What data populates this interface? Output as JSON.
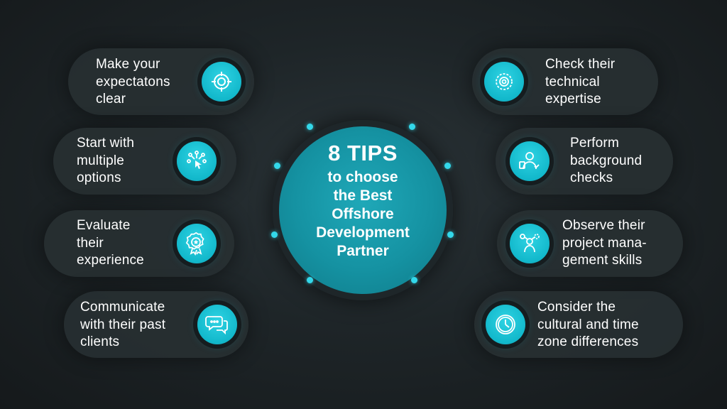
{
  "center": {
    "title": "8 TIPS",
    "subtitle": "to choose\nthe Best\nOffshore\nDevelopment\nPartner"
  },
  "tips": [
    {
      "text": "Make your\nexpectatons\nclear",
      "icon": "target-icon"
    },
    {
      "text": "Start with\nmultiple\noptions",
      "icon": "options-click-icon"
    },
    {
      "text": "Evaluate\ntheir\nexperience",
      "icon": "award-badge-icon"
    },
    {
      "text": "Communicate\nwith their past\nclients",
      "icon": "chat-bubbles-icon"
    },
    {
      "text": "Check their\ntechnical\nexpertise",
      "icon": "gears-icon"
    },
    {
      "text": "Perform\nbackground\nchecks",
      "icon": "background-check-icon"
    },
    {
      "text": "Observe their\nproject mana-\ngement skills",
      "icon": "project-management-icon"
    },
    {
      "text": "Consider the\ncultural and time\nzone differences",
      "icon": "clock-icon"
    }
  ],
  "colors": {
    "accent": "#1ec4d6",
    "center": "#1592a2",
    "background": "#1e2528",
    "pill": "#283033"
  }
}
